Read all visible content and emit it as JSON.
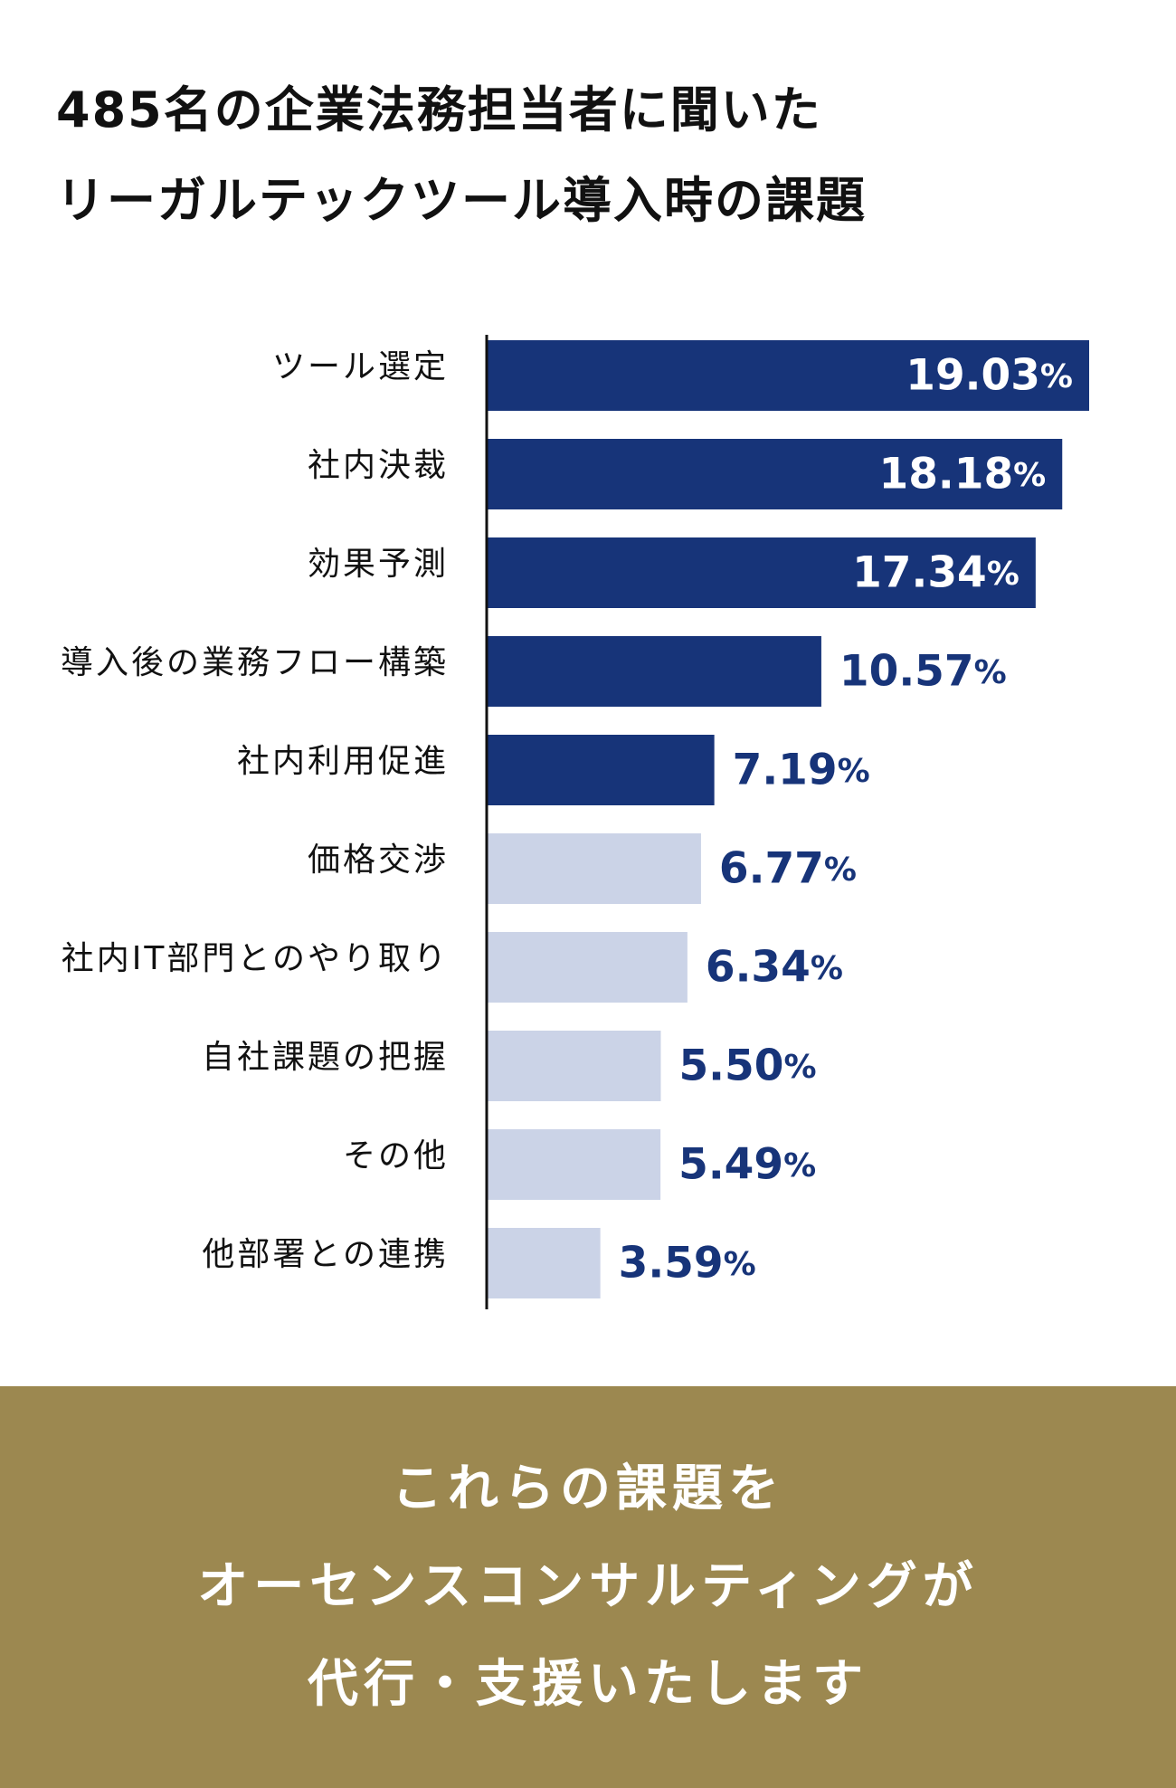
{
  "title_lines": [
    "485名の企業法務担当者に聞いた",
    "リーガルテックツール導入時の課題"
  ],
  "chart_data": {
    "type": "bar",
    "orientation": "horizontal",
    "categories": [
      "ツール選定",
      "社内決裁",
      "効果予測",
      "導入後の業務フロー構築",
      "社内利用促進",
      "価格交渉",
      "社内IT部門とのやり取り",
      "自社課題の把握",
      "その他",
      "他部署との連携"
    ],
    "values": [
      19.03,
      18.18,
      17.34,
      10.57,
      7.19,
      6.77,
      6.34,
      5.5,
      5.49,
      3.59
    ],
    "value_labels": [
      "19.03",
      "18.18",
      "17.34",
      "10.57",
      "7.19",
      "6.77",
      "6.34",
      "5.50",
      "5.49",
      "3.59"
    ],
    "unit": "%",
    "highlighted_count": 5,
    "xlim": [
      0,
      20
    ],
    "grid": false,
    "legend": "none",
    "colors": {
      "highlight_bar": "#173479",
      "other_bar": "#cbd3e7",
      "label_inside": "#ffffff",
      "label_outside": "#173479",
      "axis_line": "#111111"
    }
  },
  "footer": {
    "lines": [
      "これらの課題を",
      "オーセンスコンサルティングが",
      "代行・支援いたします"
    ],
    "background": "#9c8850"
  }
}
